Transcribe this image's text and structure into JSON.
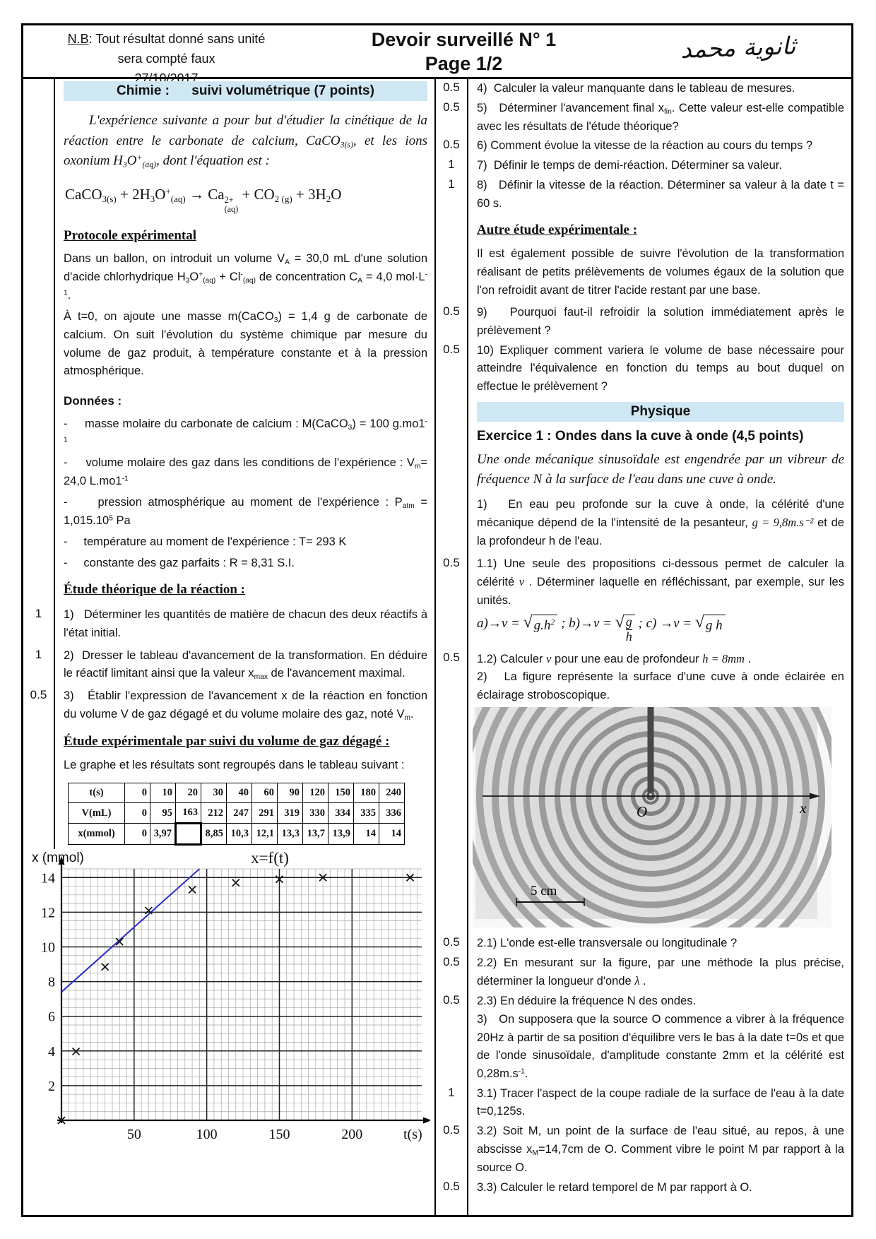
{
  "colors": {
    "band_bg": "#cfe7f3",
    "border": "#000000",
    "tangent_line": "#2b2bcc",
    "grid_minor": "#a8a8a8",
    "grid_major": "#222222"
  },
  "header": {
    "nb": [
      {
        "u": "N.B"
      },
      {
        "t": ": Tout résultat donné sans unité"
      }
    ],
    "nb_line2": "sera compté faux",
    "date": "27/10/2017",
    "title": "Devoir surveillé N° 1",
    "page": "Page 1/2",
    "arabic": "ثانوية محمد"
  },
  "left": {
    "band": {
      "label": "Chimie :",
      "title": "suivi volumétrique",
      "points": "(7 points)"
    },
    "intro": [
      {
        "t": "L'expérience suivante a pour but d'étudier la cinétique de la réaction entre le carbonate de calcium, CaCO"
      },
      {
        "sub": "3(s)"
      },
      {
        "t": ", et les ions oxonium H"
      },
      {
        "sub": "3"
      },
      {
        "t": "O"
      },
      {
        "sup": "+"
      },
      {
        "sub": "(aq)"
      },
      {
        "t": ", dont l'équation est :"
      }
    ],
    "equation": [
      {
        "t": "CaCO"
      },
      {
        "sub": "3(s)"
      },
      {
        "t": " + 2H"
      },
      {
        "sub": "3"
      },
      {
        "t": "O"
      },
      {
        "sup": "+"
      },
      {
        "sub": "(aq)"
      },
      {
        "t": " → Ca"
      },
      {
        "stack": {
          "sup": "2+",
          "sub": "(aq)"
        }
      },
      {
        "t": " + CO"
      },
      {
        "sub": "2 (g)"
      },
      {
        "t": " + 3H"
      },
      {
        "sub": "2"
      },
      {
        "t": "O"
      }
    ],
    "protocole": {
      "heading": "Protocole expérimental",
      "p1": [
        {
          "t": "Dans un ballon, on introduit un volume V"
        },
        {
          "sub": "A"
        },
        {
          "t": " = 30,0 mL d'une solution d'acide chlorhydrique H"
        },
        {
          "sub": "3"
        },
        {
          "t": "O"
        },
        {
          "sup": "+"
        },
        {
          "sub": "(aq)"
        },
        {
          "t": " + Cl"
        },
        {
          "sup": "-"
        },
        {
          "sub": "(aq)"
        },
        {
          "t": " de concentration C"
        },
        {
          "sub": "A"
        },
        {
          "t": " = 4,0 mol·L"
        },
        {
          "sup": "-1"
        },
        {
          "t": "."
        }
      ],
      "p2": [
        {
          "t": "À t=0, on ajoute une masse m(CaCO"
        },
        {
          "sub": "3"
        },
        {
          "t": ") = 1,4 g de carbonate de calcium. On suit l'évolution du système chimique par mesure du volume de gaz produit, à température constante et à la pression atmosphérique."
        }
      ]
    },
    "donnees": {
      "heading": "Données :",
      "items": [
        [
          {
            "t": "-     masse molaire du carbonate de calcium : M(CaCO"
          },
          {
            "sub": "3"
          },
          {
            "t": ") = 100 g.mo1"
          },
          {
            "sup": "-1"
          }
        ],
        [
          {
            "t": "-     volume molaire des gaz dans les conditions de l'expérience : V"
          },
          {
            "sub": "m"
          },
          {
            "t": "= 24,0 L.mo1"
          },
          {
            "sup": "-1"
          }
        ],
        [
          {
            "t": "-     pression atmosphérique au moment de l'expérience : P"
          },
          {
            "sub": "atm"
          },
          {
            "t": " = 1,015.10"
          },
          {
            "sup": "5"
          },
          {
            "t": " Pa"
          }
        ],
        [
          {
            "t": "-     température au moment de l'expérience : T= 293 K"
          }
        ],
        [
          {
            "t": "-     constante des gaz parfaits : R = 8,31 S.I."
          }
        ]
      ]
    },
    "etude_theorique": {
      "heading": "Étude théorique de la réaction :",
      "q1": {
        "mark": "1",
        "text": [
          {
            "t": "1)   Déterminer les quantités de matière de chacun des deux réactifs à l'état initial."
          }
        ]
      },
      "q2": {
        "mark": "1",
        "text": [
          {
            "t": "2)  Dresser le tableau d'avancement de la transformation. En déduire le réactif limitant ainsi que la valeur x"
          },
          {
            "sub": "max"
          },
          {
            "t": " de l'avancement maximal."
          }
        ]
      },
      "q3": {
        "mark": "0.5",
        "text": [
          {
            "t": "3)   Établir l'expression de l'avancement x de la réaction en fonction du volume V de gaz dégagé et du volume molaire des gaz, noté V"
          },
          {
            "sub": "m"
          },
          {
            "t": "."
          }
        ]
      }
    },
    "etude_exp": {
      "heading": "Étude expérimentale par suivi du volume de gaz dégagé :",
      "p": [
        {
          "t": "Le graphe et les résultats sont regroupés dans le tableau suivant :"
        }
      ]
    },
    "table": {
      "rows": [
        {
          "label": "t(s)",
          "values": [
            "0",
            "10",
            "20",
            "30",
            "40",
            "60",
            "90",
            "120",
            "150",
            "180",
            "240"
          ]
        },
        {
          "label": "V(mL)",
          "values": [
            "0",
            "95",
            "163",
            "212",
            "247",
            "291",
            "319",
            "330",
            "334",
            "335",
            "336"
          ]
        },
        {
          "label": "x(mmol)",
          "values": [
            "0",
            "3,97",
            null,
            "8,85",
            "10,3",
            "12,1",
            "13,3",
            "13,7",
            "13,9",
            "14",
            "14"
          ]
        }
      ]
    }
  },
  "chart_data": {
    "type": "scatter",
    "title": "x=f(t)",
    "xlabel": "t(s)",
    "ylabel": "x (mmol)",
    "x": [
      0,
      10,
      30,
      40,
      60,
      90,
      120,
      150,
      180,
      240
    ],
    "y": [
      0,
      3.97,
      8.85,
      10.3,
      12.1,
      13.3,
      13.7,
      13.9,
      14,
      14
    ],
    "xlim": [
      0,
      248
    ],
    "ylim": [
      0,
      14.5
    ],
    "xticks": [
      50,
      100,
      150,
      200
    ],
    "yticks": [
      2,
      4,
      6,
      8,
      10,
      12,
      14
    ],
    "x_minor_step": 5,
    "y_minor_step": 0.5,
    "grid": true,
    "marker": "x",
    "point_color": "#111111",
    "tangent_line": {
      "x1": 0,
      "y1": 7.4,
      "x2": 95,
      "y2": 14.5,
      "color": "#2b2bcc"
    }
  },
  "right": {
    "q4": {
      "mark": "0.5",
      "text": [
        {
          "t": "4)  Calculer la valeur manquante dans le tableau de mesures."
        }
      ]
    },
    "q5": {
      "mark": "0.5",
      "text": [
        {
          "t": "5)   Déterminer l'avancement final x"
        },
        {
          "sub": "fin"
        },
        {
          "t": ". Cette valeur est-elle compatible avec les résultats de l'étude théorique?"
        }
      ]
    },
    "q6": {
      "mark": "0.5",
      "text": [
        {
          "t": "6) Comment évolue la vitesse de la réaction au cours du temps ?"
        }
      ]
    },
    "q7": {
      "mark": "1",
      "text": [
        {
          "t": "7)  Définir le temps de demi-réaction. Déterminer sa valeur."
        }
      ]
    },
    "q8": {
      "mark": "1",
      "text": [
        {
          "t": "8)   Définir la vitesse de la réaction. Déterminer sa valeur à la date t = 60 s."
        }
      ]
    },
    "autre": {
      "heading": "Autre étude expérimentale :",
      "p": [
        {
          "t": "Il est également possible de suivre l'évolution de la transformation réalisant de petits prélèvements de volumes égaux de la solution que l'on refroidit avant de titrer l'acide restant par une base."
        }
      ],
      "q9": {
        "mark": "0.5",
        "text": [
          {
            "t": "9)   Pourquoi faut-il refroidir la solution immédiatement après le prélèvement ?"
          }
        ]
      },
      "q10": {
        "mark": "0.5",
        "text": [
          {
            "t": "10) Expliquer comment variera le volume de base nécessaire pour atteindre l'équivalence en fonction du temps au bout duquel on effectue le prélèvement ?"
          }
        ]
      }
    },
    "physique_band": "Physique",
    "exercice": {
      "title": "Exercice 1 : Ondes dans la cuve à onde",
      "points": "(4,5 points)"
    },
    "intro": [
      {
        "t": "Une onde mécanique sinusoïdale est engendrée par un vibreur de fréquence N à la surface de l'eau dans une cuve à onde."
      }
    ],
    "p1": [
      {
        "t": "1)   En eau peu profonde sur la cuve à onde, la célérité d'une mécanique dépend de la l'intensité de la pesanteur, "
      },
      {
        "si": "g = 9,8m.s⁻²"
      },
      {
        "t": " et de la profondeur h de l'eau."
      }
    ],
    "q11": {
      "mark": "0.5",
      "text": [
        {
          "t": "1.1) Une seule des propositions ci-dessous permet de calculer la célérité "
        },
        {
          "si": "v"
        },
        {
          "t": " . Déterminer laquelle en réfléchissant, par exemple, sur les unités."
        }
      ]
    },
    "formulas": [
      {
        "si": "a)"
      },
      {
        "rm": "→"
      },
      {
        "si": "v"
      },
      {
        "t": " = "
      },
      {
        "sqrt": [
          {
            "si": "g.h"
          },
          {
            "sup": "2"
          }
        ]
      },
      {
        "t": " ;  "
      },
      {
        "si": "b)"
      },
      {
        "rm": "→"
      },
      {
        "si": "v"
      },
      {
        "t": " = "
      },
      {
        "sqrt": [
          {
            "frac": {
              "n": "g",
              "d": "h"
            }
          }
        ]
      },
      {
        "t": " ;  "
      },
      {
        "si": "c)"
      },
      {
        "rm": " →"
      },
      {
        "si": "v"
      },
      {
        "t": " = "
      },
      {
        "sqrt": [
          {
            "si": "g h"
          }
        ]
      }
    ],
    "q12": {
      "mark": "0.5",
      "text": [
        {
          "t": "1.2) Calculer "
        },
        {
          "si": "v"
        },
        {
          "t": "  pour une eau de profondeur "
        },
        {
          "si": "h = 8mm"
        },
        {
          "t": " ."
        }
      ]
    },
    "p2": [
      {
        "t": "2)   La figure représente la surface d'une cuve à onde éclairée en éclairage stroboscopique."
      }
    ],
    "figure": {
      "origin_label": "O",
      "axis_label": "x",
      "scale_label": "5 cm"
    },
    "q21": {
      "mark": "0.5",
      "text": [
        {
          "t": "2.1) L'onde est-elle transversale ou longitudinale ?"
        }
      ]
    },
    "q22": {
      "mark": "0.5",
      "text": [
        {
          "t": "2.2) En mesurant sur la figure, par une méthode la plus précise, déterminer la longueur d'onde "
        },
        {
          "si": "λ"
        },
        {
          "t": " ."
        }
      ]
    },
    "q23": {
      "mark": "0.5",
      "text": [
        {
          "t": "2.3) En déduire la fréquence N des ondes."
        }
      ]
    },
    "p3": [
      {
        "t": "3)   On supposera que la source O commence a vibrer à la fréquence 20Hz à partir de sa position d'équilibre vers le bas à la date t=0s et que de l'onde sinusoïdale, d'amplitude constante 2mm et la célérité est 0,28m.s"
      },
      {
        "sup": "-1"
      },
      {
        "t": "."
      }
    ],
    "q31": {
      "mark": "1",
      "text": [
        {
          "t": "3.1) Tracer l'aspect de la coupe radiale de la surface de l'eau à la date t=0,125s."
        }
      ]
    },
    "q32": {
      "mark": "0.5",
      "text": [
        {
          "t": "3.2) Soit M, un point de la surface de l'eau situé, au repos, à une abscisse x"
        },
        {
          "sub": "M"
        },
        {
          "t": "=14,7cm de O. Comment vibre le point M par rapport à la source O."
        }
      ]
    },
    "q33": {
      "mark": "0.5",
      "text": [
        {
          "t": "3.3) Calculer le retard temporel de M par rapport à O."
        }
      ]
    }
  }
}
